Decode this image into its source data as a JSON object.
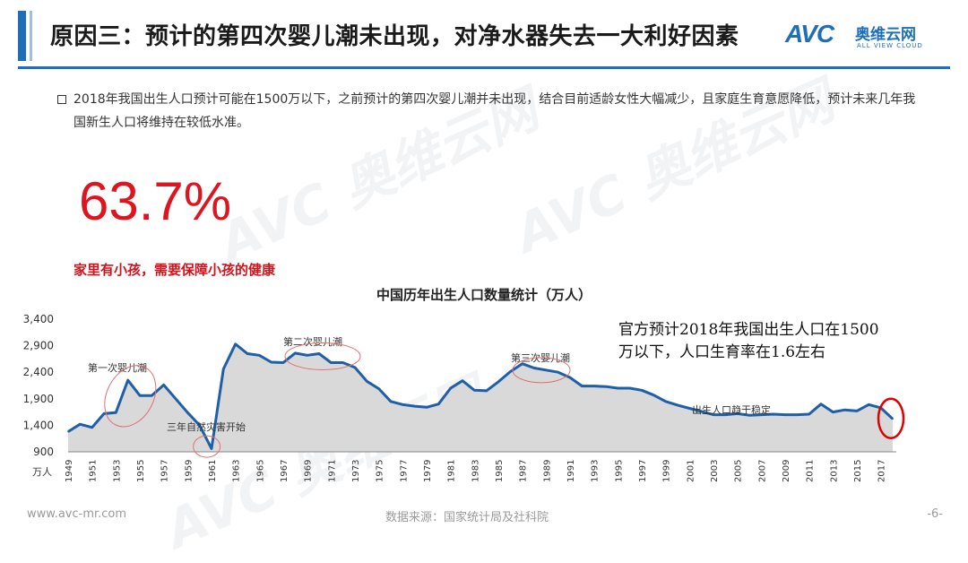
{
  "header": {
    "title": "原因三：预计的第四次婴儿潮未出现，对净水器失去一大利好因素",
    "logo_mark": "AVC",
    "logo_cn": "奥维云网",
    "logo_en": "ALL VIEW CLOUD"
  },
  "bullet": {
    "text": "2018年我国出生人口预计可能在1500万以下，之前预计的第四次婴儿潮并未出现，结合目前适龄女性大幅减少，且家庭生育意愿降低，预计未来几年我国新生人口将维持在较低水准。"
  },
  "highlight": {
    "percent": "63.7%",
    "note": "家里有小孩，需要保障小孩的健康"
  },
  "callout": {
    "line1": "官方预计2018年我国出生人口在1500",
    "line2": "万以下，人口生育率在1.6左右"
  },
  "footer": {
    "url": "www.avc-mr.com",
    "source": "数据来源：国家统计局及社科院",
    "page": "-6-"
  },
  "colors": {
    "accent": "#1e6fb8",
    "line": "#1f5fa8",
    "area": "#d9d9d9",
    "highlight_red": "#e0141e",
    "ellipse": "#e07070",
    "circle_red": "#e00000"
  },
  "chart_data": {
    "type": "area",
    "title": "中国历年出生人口数量统计（万人）",
    "ylabel": "万人",
    "ylim": [
      900,
      3400
    ],
    "yticks": [
      "3,400",
      "2,900",
      "2,400",
      "1,900",
      "1,400",
      "900"
    ],
    "xtick_labels": [
      "1949",
      "1951",
      "1953",
      "1955",
      "1957",
      "1959",
      "1961",
      "1963",
      "1965",
      "1967",
      "1969",
      "1971",
      "1973",
      "1975",
      "1977",
      "1979",
      "1981",
      "1983",
      "1985",
      "1987",
      "1989",
      "1991",
      "1993",
      "1995",
      "1997",
      "1999",
      "2001",
      "2003",
      "2005",
      "2007",
      "2009",
      "2011",
      "2013",
      "2015",
      "2017"
    ],
    "x": [
      1949,
      1950,
      1951,
      1952,
      1953,
      1954,
      1955,
      1956,
      1957,
      1958,
      1959,
      1960,
      1961,
      1962,
      1963,
      1964,
      1965,
      1966,
      1967,
      1968,
      1969,
      1970,
      1971,
      1972,
      1973,
      1974,
      1975,
      1976,
      1977,
      1978,
      1979,
      1980,
      1981,
      1982,
      1983,
      1984,
      1985,
      1986,
      1987,
      1988,
      1989,
      1990,
      1991,
      1992,
      1993,
      1994,
      1995,
      1996,
      1997,
      1998,
      1999,
      2000,
      2001,
      2002,
      2003,
      2004,
      2005,
      2006,
      2007,
      2008,
      2009,
      2010,
      2011,
      2012,
      2013,
      2014,
      2015,
      2016,
      2017,
      2018
    ],
    "series": [
      {
        "values": [
          1280,
          1420,
          1360,
          1620,
          1640,
          2250,
          1960,
          1960,
          2160,
          1900,
          1640,
          1400,
          960,
          2460,
          2930,
          2750,
          2720,
          2590,
          2580,
          2760,
          2720,
          2750,
          2580,
          2580,
          2490,
          2230,
          2090,
          1850,
          1790,
          1760,
          1740,
          1800,
          2100,
          2240,
          2060,
          2050,
          2220,
          2410,
          2560,
          2480,
          2440,
          2400,
          2300,
          2140,
          2140,
          2130,
          2100,
          2100,
          2060,
          1970,
          1850,
          1780,
          1720,
          1660,
          1600,
          1600,
          1620,
          1590,
          1600,
          1610,
          1600,
          1600,
          1610,
          1800,
          1650,
          1690,
          1670,
          1790,
          1730,
          1520
        ]
      }
    ],
    "annotations": {
      "first_boom": "第一次婴儿潮",
      "second_boom": "第二次婴儿潮",
      "third_boom": "第三次婴儿潮",
      "famine": "三年自然灾害开始",
      "stable": "出生人口趋于稳定"
    },
    "grid": false
  }
}
